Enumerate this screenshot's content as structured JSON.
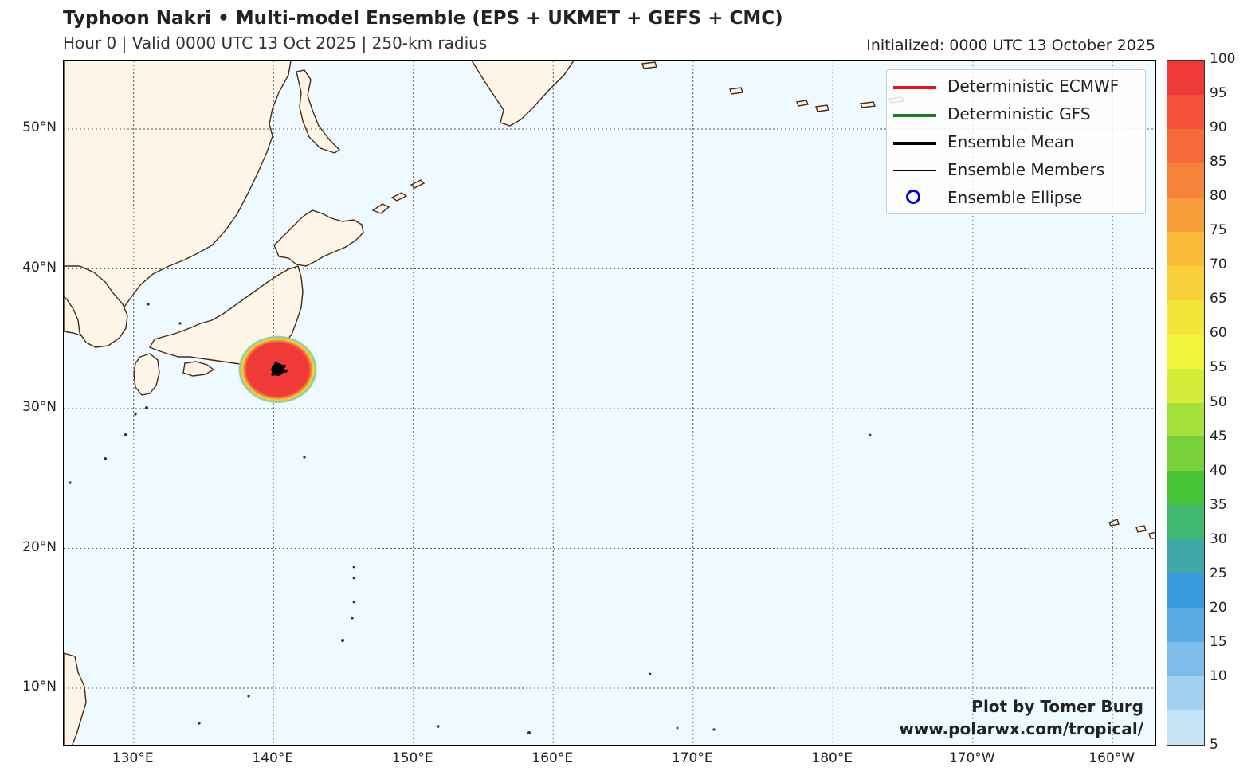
{
  "header": {
    "title": "Typhoon Nakri • Multi-model Ensemble (EPS + UKMET + GEFS + CMC)",
    "subtitle": "Hour 0 | Valid 0000 UTC 13 Oct 2025 | 250-km radius",
    "initialized": "Initialized: 0000 UTC 13 October 2025"
  },
  "axes": {
    "lat_labels": [
      "50°N",
      "40°N",
      "30°N",
      "20°N",
      "10°N"
    ],
    "lon_labels": [
      "130°E",
      "140°E",
      "150°E",
      "160°E",
      "170°E",
      "180°E",
      "170°W",
      "160°W"
    ]
  },
  "legend": {
    "items": [
      {
        "label": "Deterministic ECMWF",
        "color": "#e8141a",
        "style": "thick-line"
      },
      {
        "label": "Deterministic GFS",
        "color": "#1a7a1a",
        "style": "thick-line"
      },
      {
        "label": "Ensemble Mean",
        "color": "#000000",
        "style": "thick-line"
      },
      {
        "label": "Ensemble Members",
        "color": "#000000",
        "style": "thin-line"
      },
      {
        "label": "Ensemble Ellipse",
        "color": "#0000dd",
        "style": "circle"
      }
    ]
  },
  "colorbar": {
    "labels": [
      "100",
      "95",
      "90",
      "85",
      "80",
      "75",
      "70",
      "65",
      "60",
      "55",
      "50",
      "45",
      "40",
      "35",
      "30",
      "25",
      "20",
      "15",
      "10",
      "5"
    ],
    "colors": [
      "#f03a3a",
      "#f4533a",
      "#f56a38",
      "#f7823a",
      "#f89e3a",
      "#f9ba3a",
      "#f7d03a",
      "#f5e43a",
      "#f2f53a",
      "#d6ec3a",
      "#a6e03a",
      "#78d03a",
      "#48c63a",
      "#3fb870",
      "#3ea8a8",
      "#3a9ae0",
      "#5aaae6",
      "#7ebce9",
      "#a2d0f0",
      "#c6e4f6"
    ]
  },
  "storm": {
    "name": "Typhoon Nakri",
    "center_lat": 32.8,
    "center_lon": 140.3,
    "probability": 100
  },
  "credits": {
    "line1": "Plot by Tomer Burg",
    "line2": "www.polarwx.com/tropical/"
  },
  "colors": {
    "ocean": "#eefaff",
    "land": "#fdf5e8",
    "coast": "#4a2a10",
    "grid": "#555555"
  }
}
